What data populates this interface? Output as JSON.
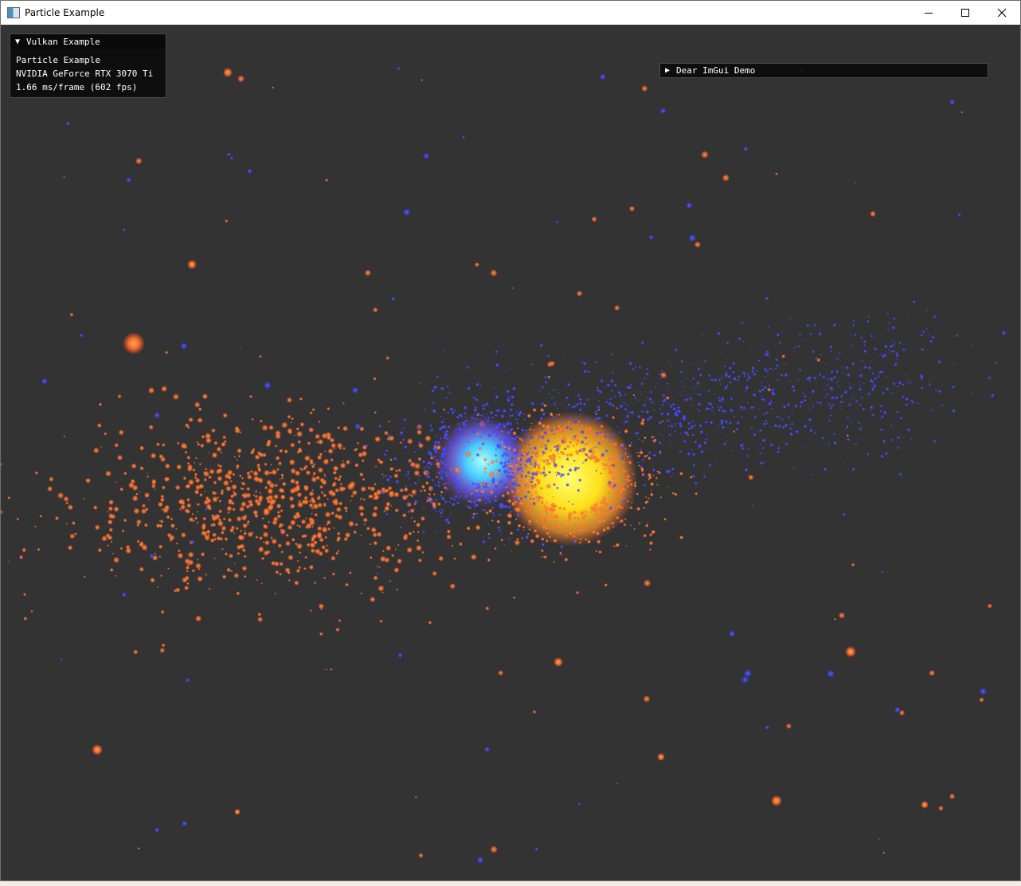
{
  "window": {
    "title": "Particle Example",
    "icon": "app-window-icon",
    "controls": [
      "minimize-icon",
      "maximize-icon",
      "close-icon"
    ]
  },
  "imgui_main": {
    "collapse_arrow": "▼",
    "title": "Vulkan Example",
    "lines": [
      "Particle Example",
      "NVIDIA GeForce RTX 3070 Ti",
      "1.66 ms/frame (602 fps)"
    ]
  },
  "imgui_demo": {
    "collapse_arrow": "▶",
    "title": "Dear ImGui Demo"
  },
  "colors": {
    "background": "#333333",
    "orange_particle": "#ff6a2a",
    "blue_particle": "#3a40ff",
    "hot_core": "#ffee22",
    "cyan_core": "#55ddff"
  }
}
